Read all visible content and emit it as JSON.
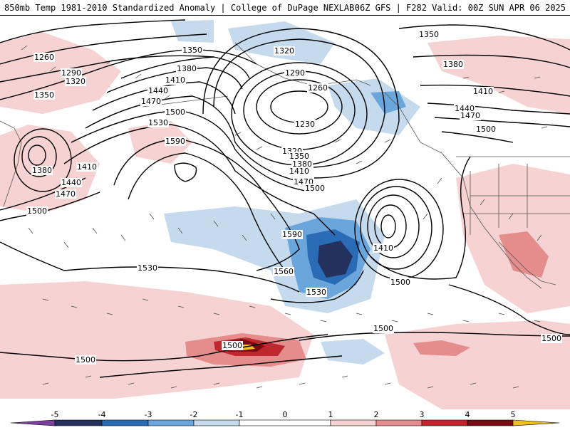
{
  "header": {
    "left": "850mb Temp 1981-2010 Standardized Anomaly | College of DuPage NEXLAB",
    "right": "06Z GFS | F282 Valid: 00Z SUN APR 06 2025"
  },
  "colorbar": {
    "ticks": [
      "-5",
      "-4",
      "-3",
      "-2",
      "-1",
      "0",
      "1",
      "2",
      "3",
      "4",
      "5"
    ],
    "colors": {
      "lt_m5": "#7b3fa0",
      "m5_m4": "#24305e",
      "m4_m3": "#2a6bb5",
      "m3_m2": "#6aa6dc",
      "m2_m1": "#c6daee",
      "m1_1": "#ffffff",
      "p1_p2": "#f6d2d2",
      "p2_p3": "#e58c8c",
      "p3_p4": "#c0282f",
      "p4_p5": "#7a0b12",
      "gt_p5": "#f0c020"
    }
  },
  "contour_labels": [
    {
      "id": "l1260w",
      "text": "1260"
    },
    {
      "id": "l1290w",
      "text": "1290"
    },
    {
      "id": "l1320w",
      "text": "1320"
    },
    {
      "id": "l1350w",
      "text": "1350"
    },
    {
      "id": "l1350c",
      "text": "1350"
    },
    {
      "id": "l1380c",
      "text": "1380"
    },
    {
      "id": "l1410c",
      "text": "1410"
    },
    {
      "id": "l1440c",
      "text": "1440"
    },
    {
      "id": "l1470c",
      "text": "1470"
    },
    {
      "id": "l1500c",
      "text": "1500"
    },
    {
      "id": "l1530c",
      "text": "1530"
    },
    {
      "id": "l1590a",
      "text": "1590"
    },
    {
      "id": "l1380x",
      "text": "1380"
    },
    {
      "id": "l1410x",
      "text": "1410"
    },
    {
      "id": "l1440x",
      "text": "1440"
    },
    {
      "id": "l1470x",
      "text": "1470"
    },
    {
      "id": "l1500x",
      "text": "1500"
    },
    {
      "id": "l1320n",
      "text": "1320"
    },
    {
      "id": "l1290n",
      "text": "1290"
    },
    {
      "id": "l1260n",
      "text": "1260"
    },
    {
      "id": "l1230n",
      "text": "1230"
    },
    {
      "id": "l1320s",
      "text": "1320"
    },
    {
      "id": "l1350s",
      "text": "1350"
    },
    {
      "id": "l1380s",
      "text": "1380"
    },
    {
      "id": "l1410s",
      "text": "1410"
    },
    {
      "id": "l1470s",
      "text": "1470"
    },
    {
      "id": "l1500s",
      "text": "1500"
    },
    {
      "id": "l1590b",
      "text": "1590"
    },
    {
      "id": "l1560b",
      "text": "1560"
    },
    {
      "id": "l1530b",
      "text": "1530"
    },
    {
      "id": "l1530w",
      "text": "1530"
    },
    {
      "id": "l1500sw",
      "text": "1500"
    },
    {
      "id": "l1410e",
      "text": "1410"
    },
    {
      "id": "l1500e",
      "text": "1500"
    },
    {
      "id": "l1350ne",
      "text": "1350"
    },
    {
      "id": "l1380ne",
      "text": "1380"
    },
    {
      "id": "l1410ne",
      "text": "1410"
    },
    {
      "id": "l1440ne",
      "text": "1440"
    },
    {
      "id": "l1470ne",
      "text": "1470"
    },
    {
      "id": "l1500ne",
      "text": "1500"
    },
    {
      "id": "l1500m",
      "text": "1500"
    },
    {
      "id": "l1500r",
      "text": "1500"
    },
    {
      "id": "l1500l",
      "text": "1500"
    }
  ]
}
